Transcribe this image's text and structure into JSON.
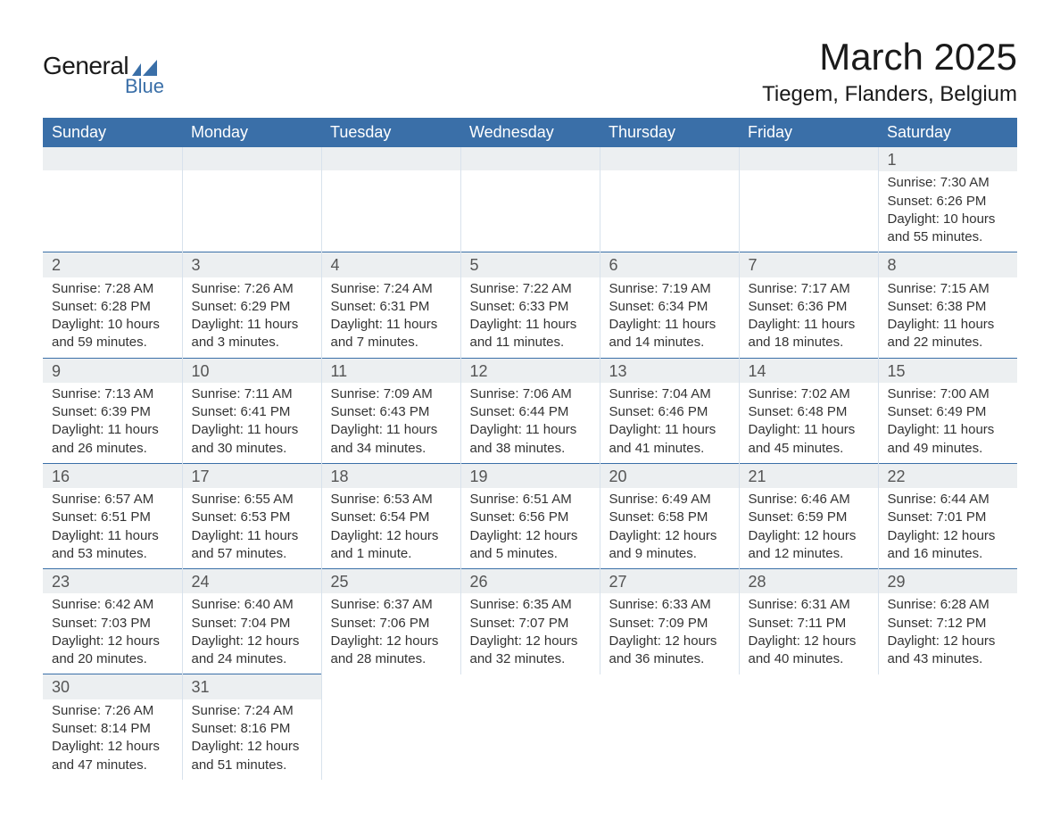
{
  "logo": {
    "main": "General",
    "sub": "Blue"
  },
  "title": "March 2025",
  "location": "Tiegem, Flanders, Belgium",
  "colors": {
    "header_bg": "#3a6fa8",
    "header_text": "#ffffff",
    "daynum_bg": "#eceff1",
    "row_border": "#3a6fa8",
    "body_text": "#333333",
    "page_bg": "#ffffff"
  },
  "day_headers": [
    "Sunday",
    "Monday",
    "Tuesday",
    "Wednesday",
    "Thursday",
    "Friday",
    "Saturday"
  ],
  "labels": {
    "sunrise": "Sunrise:",
    "sunset": "Sunset:",
    "daylight": "Daylight:"
  },
  "weeks": [
    [
      null,
      null,
      null,
      null,
      null,
      null,
      {
        "n": "1",
        "sunrise": "7:30 AM",
        "sunset": "6:26 PM",
        "daylight": "10 hours and 55 minutes."
      }
    ],
    [
      {
        "n": "2",
        "sunrise": "7:28 AM",
        "sunset": "6:28 PM",
        "daylight": "10 hours and 59 minutes."
      },
      {
        "n": "3",
        "sunrise": "7:26 AM",
        "sunset": "6:29 PM",
        "daylight": "11 hours and 3 minutes."
      },
      {
        "n": "4",
        "sunrise": "7:24 AM",
        "sunset": "6:31 PM",
        "daylight": "11 hours and 7 minutes."
      },
      {
        "n": "5",
        "sunrise": "7:22 AM",
        "sunset": "6:33 PM",
        "daylight": "11 hours and 11 minutes."
      },
      {
        "n": "6",
        "sunrise": "7:19 AM",
        "sunset": "6:34 PM",
        "daylight": "11 hours and 14 minutes."
      },
      {
        "n": "7",
        "sunrise": "7:17 AM",
        "sunset": "6:36 PM",
        "daylight": "11 hours and 18 minutes."
      },
      {
        "n": "8",
        "sunrise": "7:15 AM",
        "sunset": "6:38 PM",
        "daylight": "11 hours and 22 minutes."
      }
    ],
    [
      {
        "n": "9",
        "sunrise": "7:13 AM",
        "sunset": "6:39 PM",
        "daylight": "11 hours and 26 minutes."
      },
      {
        "n": "10",
        "sunrise": "7:11 AM",
        "sunset": "6:41 PM",
        "daylight": "11 hours and 30 minutes."
      },
      {
        "n": "11",
        "sunrise": "7:09 AM",
        "sunset": "6:43 PM",
        "daylight": "11 hours and 34 minutes."
      },
      {
        "n": "12",
        "sunrise": "7:06 AM",
        "sunset": "6:44 PM",
        "daylight": "11 hours and 38 minutes."
      },
      {
        "n": "13",
        "sunrise": "7:04 AM",
        "sunset": "6:46 PM",
        "daylight": "11 hours and 41 minutes."
      },
      {
        "n": "14",
        "sunrise": "7:02 AM",
        "sunset": "6:48 PM",
        "daylight": "11 hours and 45 minutes."
      },
      {
        "n": "15",
        "sunrise": "7:00 AM",
        "sunset": "6:49 PM",
        "daylight": "11 hours and 49 minutes."
      }
    ],
    [
      {
        "n": "16",
        "sunrise": "6:57 AM",
        "sunset": "6:51 PM",
        "daylight": "11 hours and 53 minutes."
      },
      {
        "n": "17",
        "sunrise": "6:55 AM",
        "sunset": "6:53 PM",
        "daylight": "11 hours and 57 minutes."
      },
      {
        "n": "18",
        "sunrise": "6:53 AM",
        "sunset": "6:54 PM",
        "daylight": "12 hours and 1 minute."
      },
      {
        "n": "19",
        "sunrise": "6:51 AM",
        "sunset": "6:56 PM",
        "daylight": "12 hours and 5 minutes."
      },
      {
        "n": "20",
        "sunrise": "6:49 AM",
        "sunset": "6:58 PM",
        "daylight": "12 hours and 9 minutes."
      },
      {
        "n": "21",
        "sunrise": "6:46 AM",
        "sunset": "6:59 PM",
        "daylight": "12 hours and 12 minutes."
      },
      {
        "n": "22",
        "sunrise": "6:44 AM",
        "sunset": "7:01 PM",
        "daylight": "12 hours and 16 minutes."
      }
    ],
    [
      {
        "n": "23",
        "sunrise": "6:42 AM",
        "sunset": "7:03 PM",
        "daylight": "12 hours and 20 minutes."
      },
      {
        "n": "24",
        "sunrise": "6:40 AM",
        "sunset": "7:04 PM",
        "daylight": "12 hours and 24 minutes."
      },
      {
        "n": "25",
        "sunrise": "6:37 AM",
        "sunset": "7:06 PM",
        "daylight": "12 hours and 28 minutes."
      },
      {
        "n": "26",
        "sunrise": "6:35 AM",
        "sunset": "7:07 PM",
        "daylight": "12 hours and 32 minutes."
      },
      {
        "n": "27",
        "sunrise": "6:33 AM",
        "sunset": "7:09 PM",
        "daylight": "12 hours and 36 minutes."
      },
      {
        "n": "28",
        "sunrise": "6:31 AM",
        "sunset": "7:11 PM",
        "daylight": "12 hours and 40 minutes."
      },
      {
        "n": "29",
        "sunrise": "6:28 AM",
        "sunset": "7:12 PM",
        "daylight": "12 hours and 43 minutes."
      }
    ],
    [
      {
        "n": "30",
        "sunrise": "7:26 AM",
        "sunset": "8:14 PM",
        "daylight": "12 hours and 47 minutes."
      },
      {
        "n": "31",
        "sunrise": "7:24 AM",
        "sunset": "8:16 PM",
        "daylight": "12 hours and 51 minutes."
      },
      null,
      null,
      null,
      null,
      null
    ]
  ]
}
